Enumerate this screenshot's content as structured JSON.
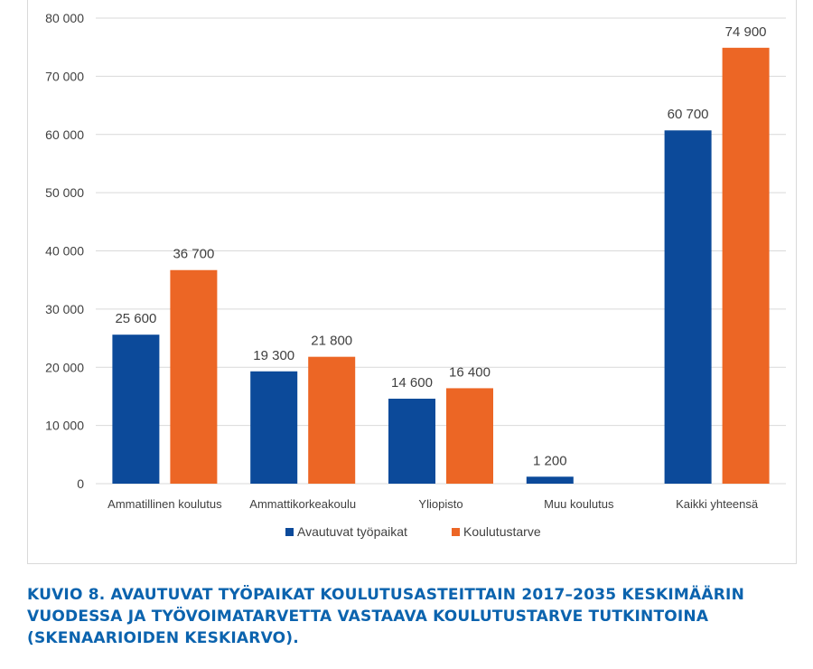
{
  "colors": {
    "series_1": "#0c4a9a",
    "series_2": "#ec6625",
    "gridline": "#d9d9d9",
    "axis_text": "#404040",
    "caption": "#0b63ae"
  },
  "chart_data": {
    "type": "bar",
    "categories": [
      "Ammatillinen koulutus",
      "Ammattikorkeakoulu",
      "Yliopisto",
      "Muu koulutus",
      "Kaikki yhteensä"
    ],
    "series": [
      {
        "name": "Avautuvat työpaikat",
        "values": [
          25600,
          19300,
          14600,
          1200,
          60700
        ],
        "labels": [
          "25 600",
          "19 300",
          "14 600",
          "1 200",
          "60 700"
        ]
      },
      {
        "name": "Koulutustarve",
        "values": [
          36700,
          21800,
          16400,
          null,
          74900
        ],
        "labels": [
          "36 700",
          "21 800",
          "16 400",
          "",
          "74 900"
        ]
      }
    ],
    "ylim": [
      0,
      80000
    ],
    "yticks": [
      0,
      10000,
      20000,
      30000,
      40000,
      50000,
      60000,
      70000,
      80000
    ],
    "ytick_labels": [
      "0",
      "10 000",
      "20 000",
      "30 000",
      "40 000",
      "50 000",
      "60 000",
      "70 000",
      "80 000"
    ],
    "grid": true,
    "legend_position": "bottom",
    "title": "",
    "xlabel": "",
    "ylabel": ""
  },
  "caption": {
    "lines": [
      "KUVIO 8. AVAUTUVAT TYÖPAIKAT KOULUTUSASTEITTAIN 2017–2035 KESKIMÄÄRIN",
      "VUODESSA JA TYÖVOIMATARVETTA VASTAAVA KOULUTUSTARVE TUTKINTOINA",
      "(SKENAARIOIDEN KESKIARVO)."
    ]
  }
}
